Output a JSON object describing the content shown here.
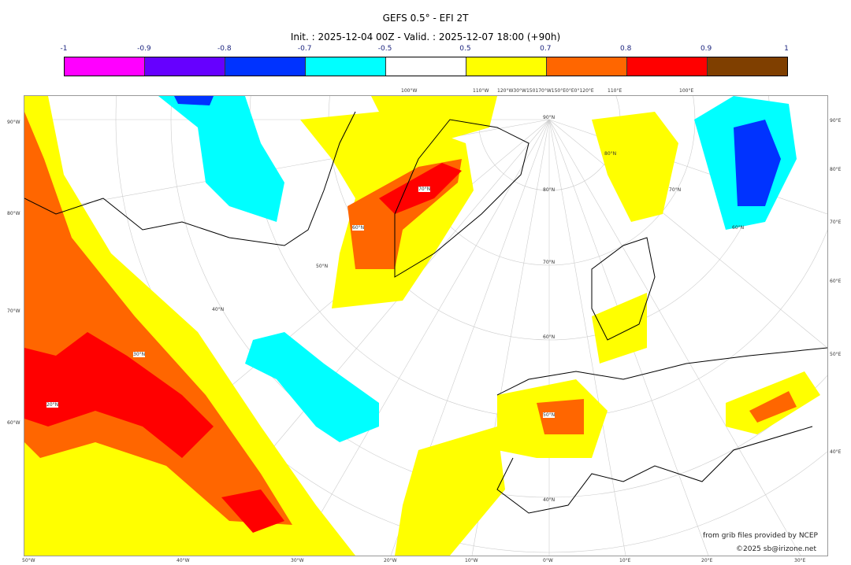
{
  "title": "GEFS 0.5° - EFI 2T",
  "subtitle": "Init. : 2025-12-04 00Z - Valid. : 2025-12-07 18:00 (+90h)",
  "colorbar": {
    "ticks": [
      "-1",
      "-0.9",
      "-0.8",
      "-0.7",
      "-0.5",
      "0.5",
      "0.7",
      "0.8",
      "0.9",
      "1"
    ],
    "colors": [
      "#ff00ff",
      "#6600ff",
      "#0033ff",
      "#00ffff",
      "#ffffff",
      "#ffff00",
      "#ff6600",
      "#ff0000",
      "#7f3f00"
    ]
  },
  "axes": {
    "bottom": [
      "50°W",
      "40°W",
      "30°W",
      "20°W",
      "10°W",
      "0°W",
      "10°E",
      "20°E",
      "30°E"
    ],
    "left": [
      "90°W",
      "80°W",
      "70°W",
      "60°W"
    ],
    "right": [
      "90°E",
      "80°E",
      "70°E",
      "60°E",
      "50°E",
      "40°E"
    ],
    "top": [
      "100°W",
      "110°W",
      "120°W30°W150170°W150°E0°E0°120°E",
      "110°E",
      "100°E"
    ],
    "lat_labels": [
      "90°N",
      "80°N",
      "70°N",
      "60°N",
      "50°N",
      "40°N",
      "30°N",
      "20°N",
      "70°N",
      "60°N",
      "50°N",
      "40°N",
      "80°N",
      "70°N",
      "60°N",
      "50°N"
    ]
  },
  "credits": {
    "line1": "from grib files provided by NCEP",
    "line2": "©2025 sb@irizone.net"
  }
}
